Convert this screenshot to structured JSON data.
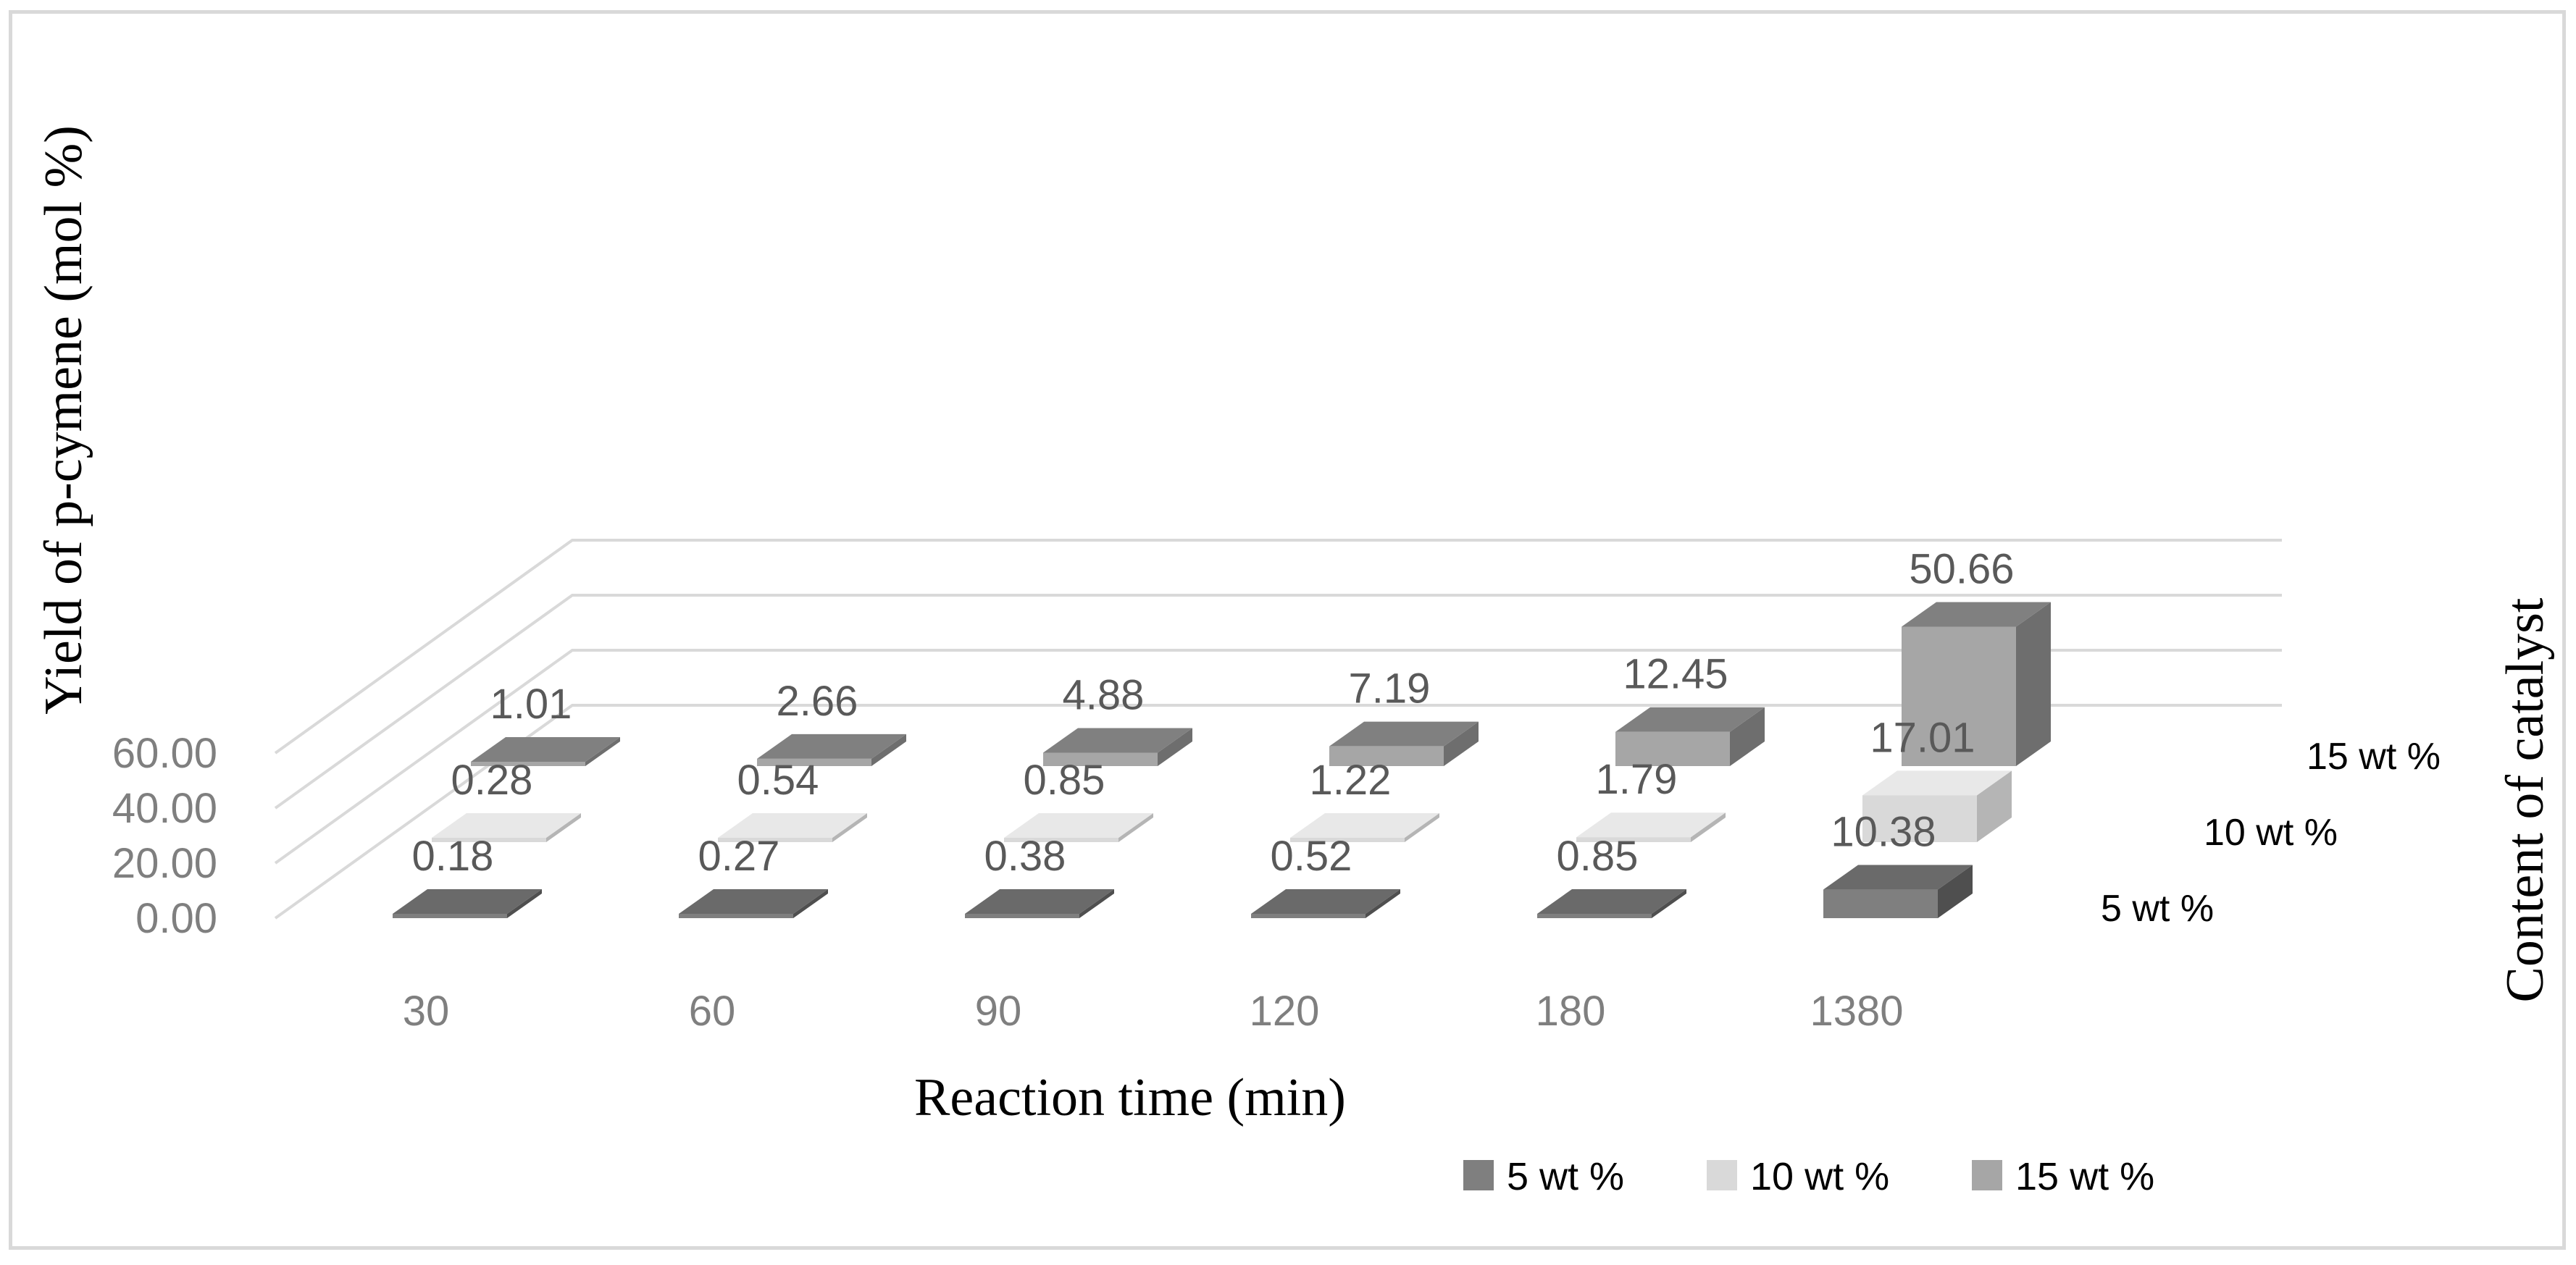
{
  "chart_data": {
    "type": "bar",
    "subtype": "3d-column",
    "title": "",
    "xlabel": "Reaction time (min)",
    "ylabel": "Yield of p-cymene (mol %)",
    "zlabel": "Content of catalyst",
    "categories": [
      "30",
      "60",
      "90",
      "120",
      "180",
      "1380"
    ],
    "yticks": [
      "0.00",
      "20.00",
      "40.00",
      "60.00"
    ],
    "ylim": [
      0,
      60
    ],
    "grid": true,
    "legend_position": "bottom-right",
    "series": [
      {
        "name": "5 wt %",
        "values": [
          0.18,
          0.27,
          0.38,
          0.52,
          0.85,
          10.38
        ],
        "labels": [
          "0.18",
          "0.27",
          "0.38",
          "0.52",
          "0.85",
          "10.38"
        ],
        "color": "#7f7f7f"
      },
      {
        "name": "10 wt %",
        "values": [
          0.28,
          0.54,
          0.85,
          1.22,
          1.79,
          17.01
        ],
        "labels": [
          "0.28",
          "0.54",
          "0.85",
          "1.22",
          "1.79",
          "17.01"
        ],
        "color": "#d9d9d9"
      },
      {
        "name": "15 wt %",
        "values": [
          1.01,
          2.66,
          4.88,
          7.19,
          12.45,
          50.66
        ],
        "labels": [
          "1.01",
          "2.66",
          "4.88",
          "7.19",
          "12.45",
          "50.66"
        ],
        "color": "#a6a6a6"
      }
    ]
  },
  "colors": {
    "grid": "#d9d9d9",
    "s0_top": "#6a6a6a",
    "s0_side": "#4f4f4f",
    "s1_top": "#e8e8e8",
    "s1_side": "#b5b5b5",
    "s2_top": "#808080",
    "s2_side": "#6e6e6e"
  }
}
